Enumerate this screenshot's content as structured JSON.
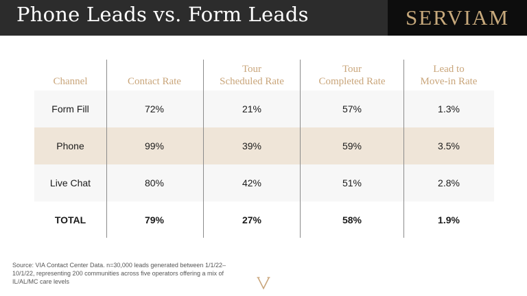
{
  "header": {
    "title": "Phone Leads vs. Form Leads",
    "brand": "SERVIAM"
  },
  "table": {
    "columns": [
      "Channel",
      "Contact Rate",
      "Tour\nScheduled Rate",
      "Tour\nCompleted Rate",
      "Lead to\nMove-in Rate"
    ],
    "rows": [
      [
        "Form Fill",
        "72%",
        "21%",
        "57%",
        "1.3%"
      ],
      [
        "Phone",
        "99%",
        "39%",
        "59%",
        "3.5%"
      ],
      [
        "Live Chat",
        "80%",
        "42%",
        "51%",
        "2.8%"
      ],
      [
        "TOTAL",
        "79%",
        "27%",
        "58%",
        "1.9%"
      ]
    ]
  },
  "footer": {
    "source": "Source: VIA Contact Center Data. n=30,000 leads generated between 1/1/22–10/1/22, representing 200 communities across five operators offering a mix of IL/AL/MC care levels",
    "logo_icon": "v-monogram-icon"
  },
  "colors": {
    "header_bg": "#2c2c2c",
    "brand_bg": "#0d0d0d",
    "gold": "#c9a57a",
    "row_alt": "#efe5d8",
    "row_light": "#f7f7f7"
  }
}
